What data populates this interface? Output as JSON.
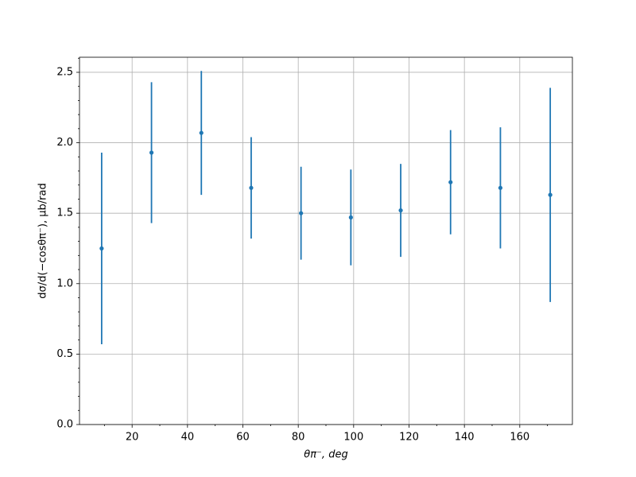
{
  "chart_data": {
    "type": "errorbar",
    "xlabel": "θπ⁻, deg",
    "ylabel": "dσ/d(−cosθπ⁻), μb/rad",
    "x": [
      9,
      27,
      45,
      63,
      81,
      99,
      117,
      135,
      153,
      171
    ],
    "series": [
      {
        "color": "#1f77b4",
        "values": [
          1.25,
          1.93,
          2.07,
          1.68,
          1.5,
          1.47,
          1.52,
          1.72,
          1.68,
          1.63
        ],
        "errors": [
          0.68,
          0.5,
          0.44,
          0.36,
          0.33,
          0.34,
          0.33,
          0.37,
          0.43,
          0.76
        ]
      }
    ],
    "xlim": [
      1,
      179
    ],
    "ylim": [
      0,
      2.607
    ],
    "xticks": [
      20,
      40,
      60,
      80,
      100,
      120,
      140,
      160
    ],
    "yticks": [
      {
        "value": 0,
        "label": "0.0"
      },
      {
        "value": 0.5,
        "label": "0.5"
      },
      {
        "value": 1,
        "label": "1.0"
      },
      {
        "value": 1.5,
        "label": "1.5"
      },
      {
        "value": 2,
        "label": "2.0"
      },
      {
        "value": 2.5,
        "label": "2.5"
      }
    ],
    "x_minor_ticks": [
      10,
      30,
      50,
      70,
      90,
      110,
      130,
      150,
      170
    ],
    "y_minor_ticks": [
      0.1,
      0.2,
      0.3,
      0.4,
      0.6,
      0.7,
      0.8,
      0.9,
      1.1,
      1.2,
      1.3,
      1.4,
      1.6,
      1.7,
      1.8,
      1.9,
      2.1,
      2.2,
      2.3,
      2.4,
      2.6
    ],
    "grid": true
  }
}
